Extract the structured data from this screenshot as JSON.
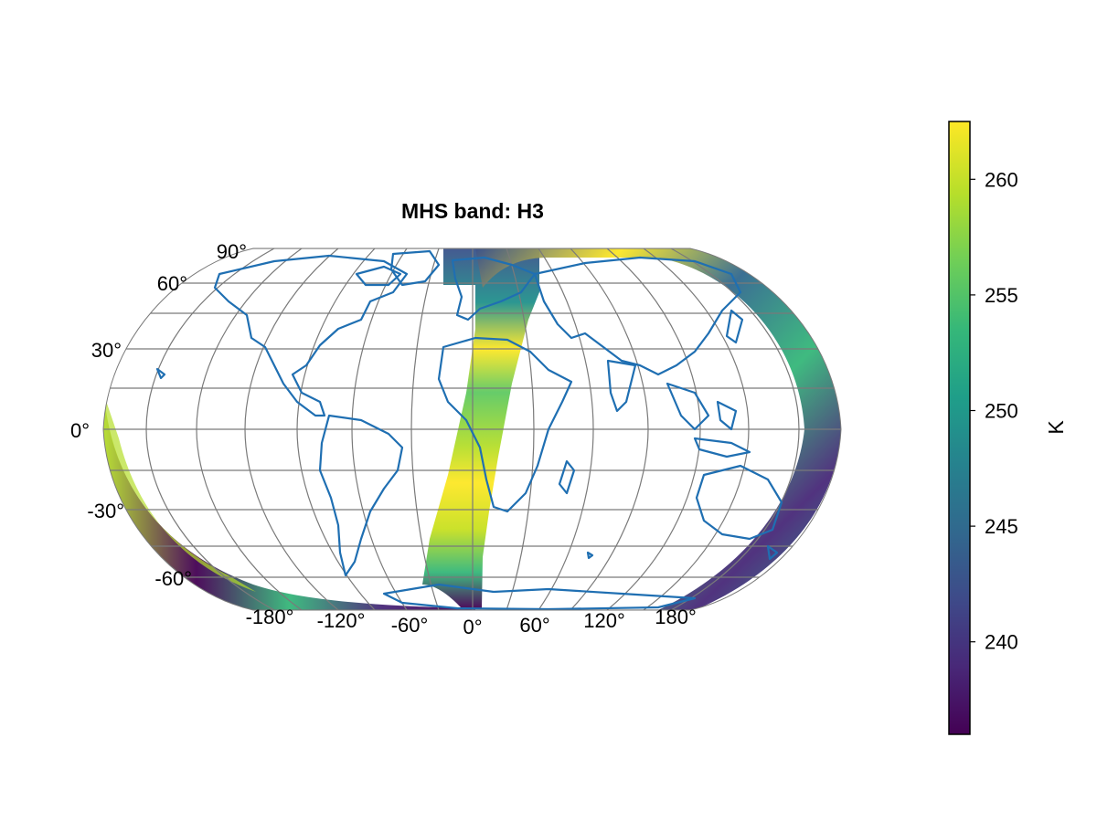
{
  "title": "MHS band: H3",
  "map": {
    "projection": "Winkel tripel",
    "lat_labels": [
      "90°",
      "60°",
      "30°",
      "0°",
      "-30°",
      "-60°"
    ],
    "lon_labels": [
      "-180°",
      "-120°",
      "-60°",
      "0°",
      "60°",
      "120°",
      "180°"
    ],
    "coastline_color": "#1f6fb2",
    "grid_color": "#7a7a7a"
  },
  "colorbar": {
    "label": "K",
    "colormap": "viridis",
    "range": [
      236,
      262.5
    ],
    "ticks": [
      "240",
      "245",
      "250",
      "255",
      "260"
    ],
    "tick_values": [
      240,
      245,
      250,
      255,
      260
    ],
    "colors": [
      "#440154",
      "#482878",
      "#3e4a89",
      "#31688e",
      "#26828e",
      "#1f9e89",
      "#35b779",
      "#6ece58",
      "#b5de2b",
      "#fde725"
    ]
  }
}
